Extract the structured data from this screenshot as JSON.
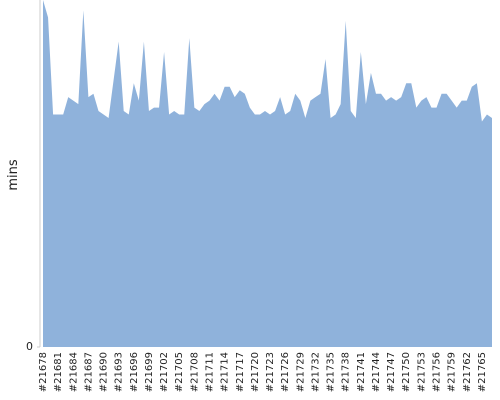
{
  "chart_data": {
    "type": "area",
    "y_label": "mins",
    "color": "#8fb2db",
    "ylim": [
      0,
      100
    ],
    "yticks": [
      0
    ],
    "categories": [
      "#21678",
      null,
      null,
      "#21681",
      null,
      null,
      "#21684",
      null,
      null,
      "#21687",
      null,
      null,
      "#21690",
      null,
      null,
      "#21693",
      null,
      null,
      "#21696",
      null,
      null,
      "#21699",
      null,
      null,
      "#21702",
      null,
      null,
      "#21705",
      null,
      null,
      "#21708",
      null,
      null,
      "#21711",
      null,
      null,
      "#21714",
      null,
      null,
      "#21717",
      null,
      null,
      "#21720",
      null,
      null,
      "#21723",
      null,
      null,
      "#21726",
      null,
      null,
      "#21729",
      null,
      null,
      "#21732",
      null,
      null,
      "#21735",
      null,
      null,
      "#21738",
      null,
      null,
      "#21741",
      null,
      null,
      "#21744",
      null,
      null,
      "#21747",
      null,
      null,
      "#21750",
      null,
      null,
      "#21753",
      null,
      null,
      "#21756",
      null,
      null,
      "#21759",
      null,
      null,
      "#21762",
      null,
      null,
      "#21765",
      null,
      null
    ],
    "values": [
      100,
      95,
      67,
      67,
      67,
      72,
      71,
      70,
      97,
      72,
      73,
      68,
      67,
      66,
      77,
      88,
      68,
      67,
      76,
      71,
      88,
      68,
      69,
      69,
      85,
      67,
      68,
      67,
      67,
      89,
      69,
      68,
      70,
      71,
      73,
      71,
      75,
      75,
      72,
      74,
      73,
      69,
      67,
      67,
      68,
      67,
      68,
      72,
      67,
      68,
      73,
      71,
      66,
      71,
      72,
      73,
      83,
      66,
      67,
      70,
      94,
      68,
      66,
      85,
      70,
      79,
      73,
      73,
      71,
      72,
      71,
      72,
      76,
      76,
      69,
      71,
      72,
      69,
      69,
      73,
      73,
      71,
      69,
      71,
      71,
      75,
      76,
      65,
      67,
      66
    ]
  }
}
